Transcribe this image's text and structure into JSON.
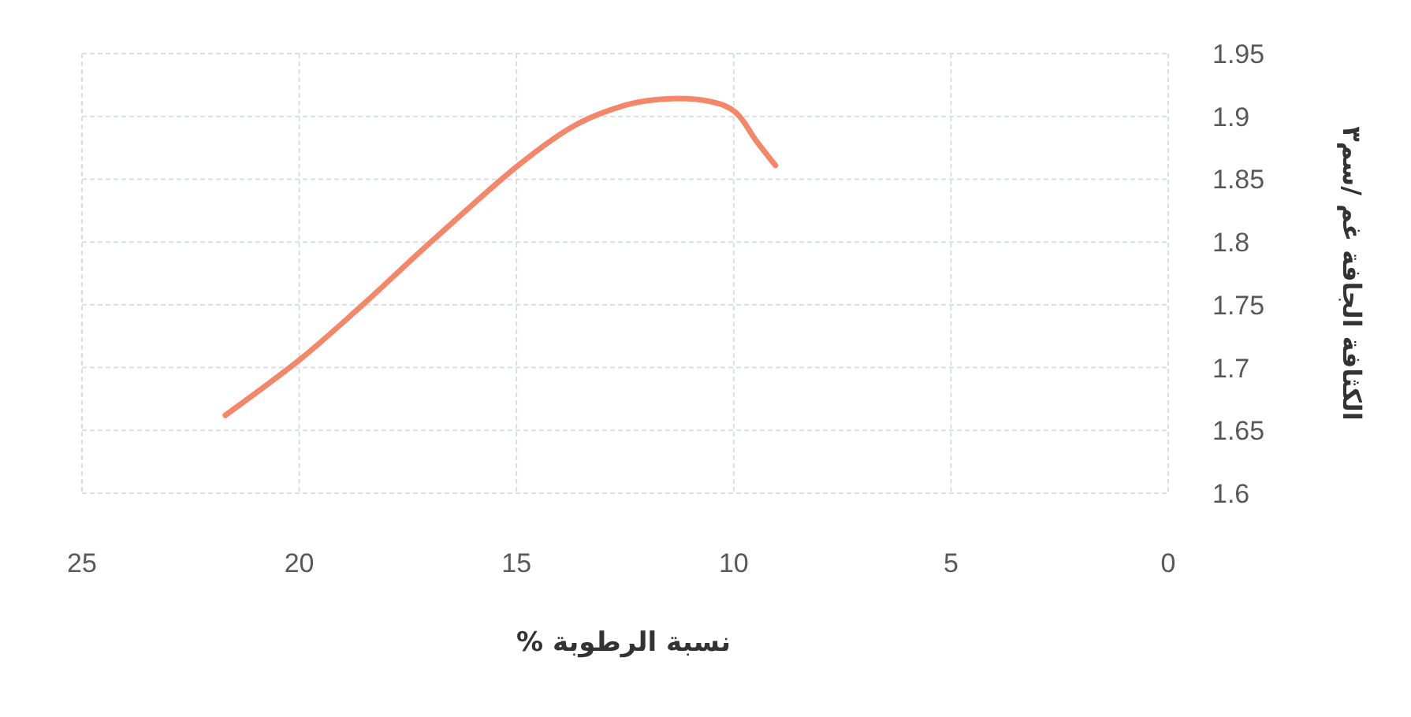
{
  "chart_data": {
    "type": "line",
    "xlabel": "نسبة الرطوبة %",
    "ylabel": "الكثافة الجافة غم /سم٣",
    "x": [
      21.7,
      20.0,
      18.54,
      16.97,
      15.03,
      13.7,
      12.49,
      11.53,
      10.56,
      9.95,
      9.47,
      9.04
    ],
    "series": [
      {
        "color": "#f4876a",
        "values": [
          1.662,
          1.706,
          1.75,
          1.8,
          1.859,
          1.892,
          1.909,
          1.914,
          1.912,
          1.903,
          1.88,
          1.861
        ]
      }
    ],
    "xlim": [
      25,
      0
    ],
    "xticks": [
      25,
      20,
      15,
      10,
      5,
      0
    ],
    "ylim": [
      1.6,
      1.95
    ],
    "yticks": [
      1.6,
      1.65,
      1.7,
      1.75,
      1.8,
      1.85,
      1.9,
      1.95
    ],
    "grid": true,
    "marker": "none",
    "line_style": "solid"
  }
}
